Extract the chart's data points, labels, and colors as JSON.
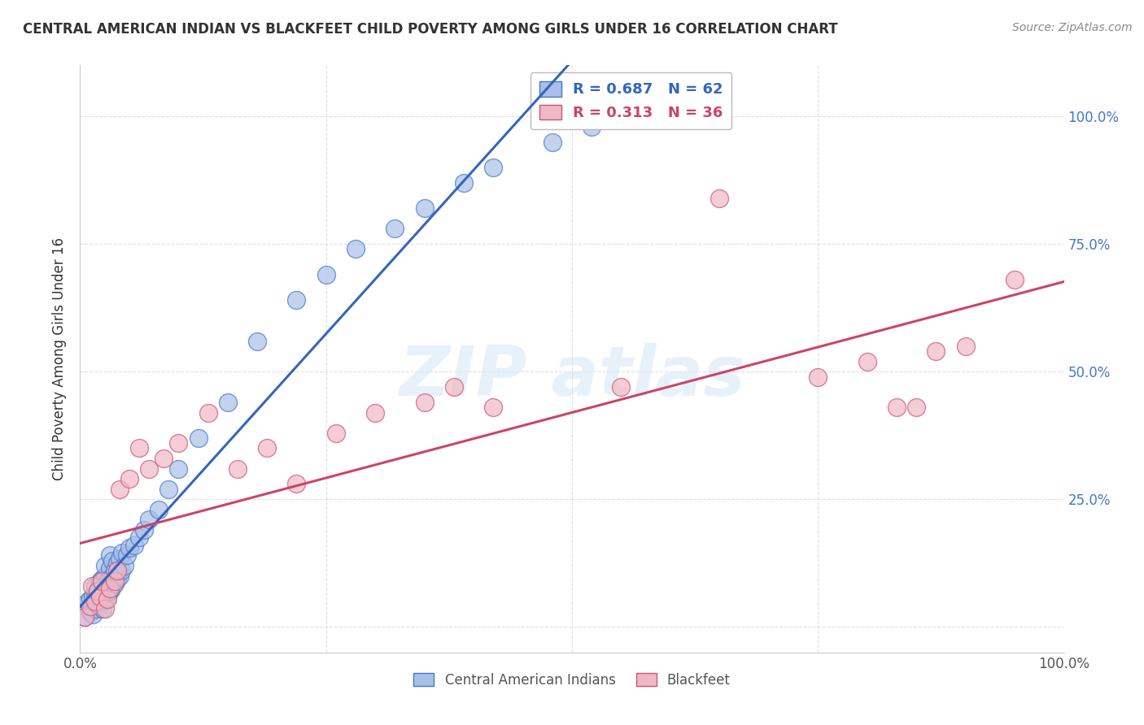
{
  "title": "CENTRAL AMERICAN INDIAN VS BLACKFEET CHILD POVERTY AMONG GIRLS UNDER 16 CORRELATION CHART",
  "source": "Source: ZipAtlas.com",
  "ylabel": "Child Poverty Among Girls Under 16",
  "xlim": [
    0.0,
    1.0
  ],
  "ylim": [
    -0.05,
    1.1
  ],
  "xticks": [
    0.0,
    0.25,
    0.5,
    0.75,
    1.0
  ],
  "yticks": [
    0.0,
    0.25,
    0.5,
    0.75,
    1.0
  ],
  "xticklabels": [
    "0.0%",
    "",
    "",
    "",
    "100.0%"
  ],
  "right_yticklabels": [
    "",
    "25.0%",
    "50.0%",
    "75.0%",
    "100.0%"
  ],
  "blue_color": "#aabfe8",
  "pink_color": "#f0b8c5",
  "blue_edge_color": "#4477cc",
  "pink_edge_color": "#cc5577",
  "blue_line_color": "#3366bb",
  "pink_line_color": "#cc4466",
  "legend_blue_R": "R = 0.687",
  "legend_blue_N": "N = 62",
  "legend_pink_R": "R = 0.313",
  "legend_pink_N": "N = 36",
  "legend_label_blue": "Central American Indians",
  "legend_label_pink": "Blackfeet",
  "background_color": "#ffffff",
  "grid_color": "#dddddd",
  "blue_x": [
    0.005,
    0.008,
    0.01,
    0.01,
    0.012,
    0.013,
    0.013,
    0.015,
    0.015,
    0.015,
    0.018,
    0.018,
    0.02,
    0.02,
    0.02,
    0.022,
    0.022,
    0.023,
    0.023,
    0.025,
    0.025,
    0.025,
    0.025,
    0.028,
    0.028,
    0.03,
    0.03,
    0.03,
    0.03,
    0.032,
    0.033,
    0.033,
    0.035,
    0.035,
    0.038,
    0.038,
    0.04,
    0.04,
    0.042,
    0.043,
    0.045,
    0.048,
    0.05,
    0.055,
    0.06,
    0.065,
    0.07,
    0.08,
    0.09,
    0.1,
    0.12,
    0.15,
    0.18,
    0.22,
    0.25,
    0.28,
    0.32,
    0.35,
    0.39,
    0.42,
    0.48,
    0.52
  ],
  "blue_y": [
    0.02,
    0.05,
    0.03,
    0.055,
    0.04,
    0.025,
    0.06,
    0.035,
    0.06,
    0.08,
    0.045,
    0.07,
    0.04,
    0.065,
    0.09,
    0.05,
    0.075,
    0.035,
    0.095,
    0.055,
    0.08,
    0.1,
    0.12,
    0.06,
    0.09,
    0.07,
    0.095,
    0.115,
    0.14,
    0.075,
    0.1,
    0.13,
    0.085,
    0.11,
    0.095,
    0.125,
    0.1,
    0.135,
    0.11,
    0.145,
    0.12,
    0.14,
    0.155,
    0.16,
    0.175,
    0.19,
    0.21,
    0.23,
    0.27,
    0.31,
    0.37,
    0.44,
    0.56,
    0.64,
    0.69,
    0.74,
    0.78,
    0.82,
    0.87,
    0.9,
    0.95,
    0.98
  ],
  "pink_x": [
    0.005,
    0.01,
    0.012,
    0.015,
    0.018,
    0.02,
    0.022,
    0.025,
    0.028,
    0.03,
    0.035,
    0.038,
    0.04,
    0.05,
    0.06,
    0.07,
    0.085,
    0.1,
    0.13,
    0.16,
    0.19,
    0.22,
    0.26,
    0.3,
    0.35,
    0.38,
    0.42,
    0.55,
    0.65,
    0.75,
    0.8,
    0.83,
    0.85,
    0.87,
    0.9,
    0.95
  ],
  "pink_y": [
    0.02,
    0.04,
    0.08,
    0.05,
    0.07,
    0.06,
    0.09,
    0.035,
    0.055,
    0.075,
    0.09,
    0.11,
    0.27,
    0.29,
    0.35,
    0.31,
    0.33,
    0.36,
    0.42,
    0.31,
    0.35,
    0.28,
    0.38,
    0.42,
    0.44,
    0.47,
    0.43,
    0.47,
    0.84,
    0.49,
    0.52,
    0.43,
    0.43,
    0.54,
    0.55,
    0.68
  ]
}
